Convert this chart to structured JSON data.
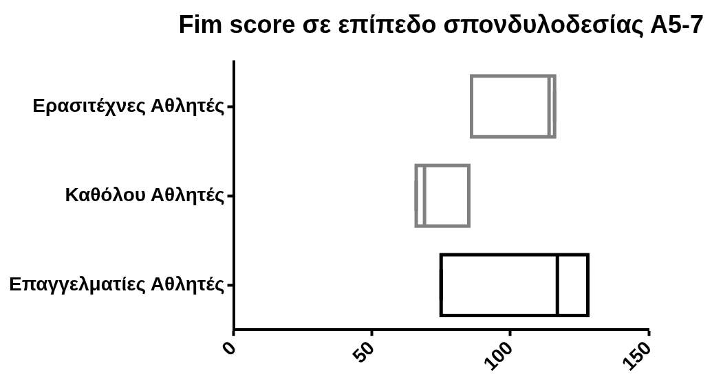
{
  "chart_data": {
    "type": "box",
    "title": "Fim score σε επίπεδο σπονδυλοδεσίας Α5-7",
    "orientation": "horizontal",
    "categories": [
      "Ερασιτέχνες Αθλητές",
      "Καθόλου Αθλητές",
      "Επαγγελματίες Αθλητές"
    ],
    "boxes": [
      {
        "low": 86,
        "q1": 86,
        "median": 114,
        "q3": 116,
        "high": 116
      },
      {
        "low": 66,
        "q1": 66,
        "median": 69,
        "q3": 85,
        "high": 85
      },
      {
        "low": 75,
        "q1": 75,
        "median": 117,
        "q3": 128,
        "high": 128
      }
    ],
    "colors": [
      "#808080",
      "#808080",
      "#000000"
    ],
    "xlim": [
      0,
      150
    ],
    "xticks": [
      0,
      50,
      100,
      150
    ]
  }
}
